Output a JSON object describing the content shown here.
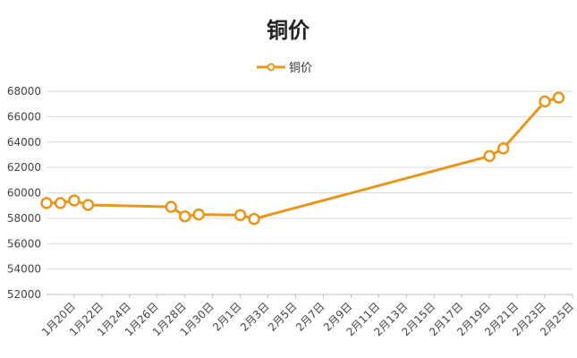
{
  "chart_data": {
    "type": "line",
    "title": "铜价",
    "legend": {
      "position": "top",
      "entries": [
        "铜价"
      ]
    },
    "grid": true,
    "color": "#E8961B",
    "ylim": [
      52000,
      68000
    ],
    "yticks": [
      52000,
      54000,
      56000,
      58000,
      60000,
      62000,
      64000,
      66000,
      68000
    ],
    "xlim": [
      "2024-01-18",
      "2024-02-25"
    ],
    "xticks": [
      {
        "date": "2024-01-20",
        "label": "1月20日"
      },
      {
        "date": "2024-01-22",
        "label": "1月22日"
      },
      {
        "date": "2024-01-24",
        "label": "1月24日"
      },
      {
        "date": "2024-01-26",
        "label": "1月26日"
      },
      {
        "date": "2024-01-28",
        "label": "1月28日"
      },
      {
        "date": "2024-01-30",
        "label": "1月30日"
      },
      {
        "date": "2024-02-01",
        "label": "2月1日"
      },
      {
        "date": "2024-02-03",
        "label": "2月3日"
      },
      {
        "date": "2024-02-05",
        "label": "2月5日"
      },
      {
        "date": "2024-02-07",
        "label": "2月7日"
      },
      {
        "date": "2024-02-09",
        "label": "2月9日"
      },
      {
        "date": "2024-02-11",
        "label": "2月11日"
      },
      {
        "date": "2024-02-13",
        "label": "2月13日"
      },
      {
        "date": "2024-02-15",
        "label": "2月15日"
      },
      {
        "date": "2024-02-17",
        "label": "2月17日"
      },
      {
        "date": "2024-02-19",
        "label": "2月19日"
      },
      {
        "date": "2024-02-21",
        "label": "2月21日"
      },
      {
        "date": "2024-02-23",
        "label": "2月23日"
      },
      {
        "date": "2024-02-25",
        "label": "2月25日"
      }
    ],
    "series": [
      {
        "name": "铜价",
        "points": [
          {
            "x": "2024-01-18",
            "y": 59200
          },
          {
            "x": "2024-01-19",
            "y": 59200
          },
          {
            "x": "2024-01-20",
            "y": 59400
          },
          {
            "x": "2024-01-21",
            "y": 59050
          },
          {
            "x": "2024-01-27",
            "y": 58900
          },
          {
            "x": "2024-01-28",
            "y": 58150
          },
          {
            "x": "2024-01-29",
            "y": 58300
          },
          {
            "x": "2024-02-01",
            "y": 58250
          },
          {
            "x": "2024-02-02",
            "y": 57950
          },
          {
            "x": "2024-02-19",
            "y": 62900
          },
          {
            "x": "2024-02-20",
            "y": 63500
          },
          {
            "x": "2024-02-23",
            "y": 67200
          },
          {
            "x": "2024-02-24",
            "y": 67500
          }
        ]
      }
    ]
  }
}
